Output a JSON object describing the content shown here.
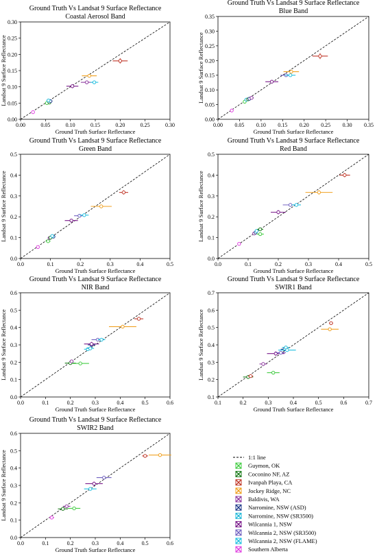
{
  "chart_data": [
    {
      "type": "scatter",
      "title": "Ground Truth Vs Landsat 9 Surface Reflectance",
      "subtitle": "Coastal Aerosol Band",
      "xlabel": "Ground Truth Surface Reflectance",
      "ylabel": "Landsat 9 Surface Reflectance",
      "xlim": [
        0,
        0.3
      ],
      "ylim": [
        0,
        0.3
      ],
      "xticks": [
        "0.00",
        "0.05",
        "0.10",
        "0.15",
        "0.20",
        "0.25",
        "0.30"
      ],
      "yticks": [
        "0.00",
        "0.05",
        "0.10",
        "0.15",
        "0.20",
        "0.25",
        "0.30"
      ],
      "tick_values": [
        0,
        0.05,
        0.1,
        0.15,
        0.2,
        0.25,
        0.3
      ],
      "points": [
        {
          "site": "Southern Alberta",
          "x": 0.025,
          "y": 0.022,
          "xerr": 0.003,
          "yerr": 0.002
        },
        {
          "site": "Guymon, OK",
          "x": 0.053,
          "y": 0.05,
          "xerr": 0.004,
          "yerr": 0.003
        },
        {
          "site": "Coconino NF, AZ",
          "x": 0.058,
          "y": 0.052,
          "xerr": 0.004,
          "yerr": 0.003
        },
        {
          "site": "Narromine, NSW (ASD)",
          "x": 0.06,
          "y": 0.056,
          "xerr": 0.004,
          "yerr": 0.003
        },
        {
          "site": "Narromine, NSW (SR3500)",
          "x": 0.056,
          "y": 0.058,
          "xerr": 0.004,
          "yerr": 0.003
        },
        {
          "site": "Wilcannia 1, NSW",
          "x": 0.104,
          "y": 0.102,
          "xerr": 0.012,
          "yerr": 0.006
        },
        {
          "site": "Baldivis, WA",
          "x": 0.133,
          "y": 0.114,
          "xerr": 0.012,
          "yerr": 0.004
        },
        {
          "site": "Wilcannia 2, NSW (FLAME)",
          "x": 0.148,
          "y": 0.114,
          "xerr": 0.008,
          "yerr": 0.004
        },
        {
          "site": "Jockey Ridge, NC",
          "x": 0.138,
          "y": 0.134,
          "xerr": 0.015,
          "yerr": 0.005
        },
        {
          "site": "Ivanpah Playa, CA",
          "x": 0.2,
          "y": 0.18,
          "xerr": 0.015,
          "yerr": 0.008
        }
      ]
    },
    {
      "type": "scatter",
      "title": "Ground Truth Vs Landsat 9 Surface Reflectance",
      "subtitle": "Blue Band",
      "xlabel": "Ground Truth Surface Reflectance",
      "ylabel": "Landsat 9 Surface Reflectance",
      "xlim": [
        0,
        0.35
      ],
      "ylim": [
        0,
        0.35
      ],
      "xticks": [
        "0.00",
        "0.05",
        "0.10",
        "0.15",
        "0.20",
        "0.25",
        "0.30",
        "0.35"
      ],
      "yticks": [
        "0.00",
        "0.05",
        "0.10",
        "0.15",
        "0.20",
        "0.25",
        "0.30",
        "0.35"
      ],
      "tick_values": [
        0,
        0.05,
        0.1,
        0.15,
        0.2,
        0.25,
        0.3,
        0.35
      ],
      "points": [
        {
          "site": "Southern Alberta",
          "x": 0.032,
          "y": 0.03,
          "xerr": 0.003,
          "yerr": 0.002
        },
        {
          "site": "Guymon, OK",
          "x": 0.062,
          "y": 0.06,
          "xerr": 0.004,
          "yerr": 0.003
        },
        {
          "site": "Narromine, NSW (SR3500)",
          "x": 0.066,
          "y": 0.067,
          "xerr": 0.004,
          "yerr": 0.003
        },
        {
          "site": "Coconino NF, AZ",
          "x": 0.07,
          "y": 0.068,
          "xerr": 0.004,
          "yerr": 0.003
        },
        {
          "site": "Narromine, NSW (ASD)",
          "x": 0.073,
          "y": 0.07,
          "xerr": 0.004,
          "yerr": 0.003
        },
        {
          "site": "Baldivis, WA",
          "x": 0.078,
          "y": 0.073,
          "xerr": 0.005,
          "yerr": 0.003
        },
        {
          "site": "Wilcannia 1, NSW",
          "x": 0.125,
          "y": 0.128,
          "xerr": 0.015,
          "yerr": 0.006
        },
        {
          "site": "Wilcannia 2, NSW (SR3500)",
          "x": 0.158,
          "y": 0.15,
          "xerr": 0.013,
          "yerr": 0.005
        },
        {
          "site": "Wilcannia 2, NSW (FLAME)",
          "x": 0.168,
          "y": 0.15,
          "xerr": 0.012,
          "yerr": 0.005
        },
        {
          "site": "Jockey Ridge, NC",
          "x": 0.17,
          "y": 0.162,
          "xerr": 0.018,
          "yerr": 0.006
        },
        {
          "site": "Ivanpah Playa, CA",
          "x": 0.237,
          "y": 0.215,
          "xerr": 0.018,
          "yerr": 0.01
        }
      ]
    },
    {
      "type": "scatter",
      "title": "Ground Truth Vs Landsat 9 Surface Reflectance",
      "subtitle": "Green Band",
      "xlabel": "Ground Truth Surface Reflectance",
      "ylabel": "Landsat 9 Surface Reflectance",
      "xlim": [
        0,
        0.5
      ],
      "ylim": [
        0,
        0.5
      ],
      "xticks": [
        "0.0",
        "0.1",
        "0.2",
        "0.3",
        "0.4",
        "0.5"
      ],
      "yticks": [
        "0.0",
        "0.1",
        "0.2",
        "0.3",
        "0.4",
        "0.5"
      ],
      "tick_values": [
        0,
        0.1,
        0.2,
        0.3,
        0.4,
        0.5
      ],
      "points": [
        {
          "site": "Southern Alberta",
          "x": 0.058,
          "y": 0.055,
          "xerr": 0.004,
          "yerr": 0.003
        },
        {
          "site": "Guymon, OK",
          "x": 0.092,
          "y": 0.083,
          "xerr": 0.008,
          "yerr": 0.004
        },
        {
          "site": "Baldivis, WA",
          "x": 0.097,
          "y": 0.098,
          "xerr": 0.006,
          "yerr": 0.004
        },
        {
          "site": "Coconino NF, AZ",
          "x": 0.1,
          "y": 0.1,
          "xerr": 0.006,
          "yerr": 0.004
        },
        {
          "site": "Narromine, NSW (ASD)",
          "x": 0.11,
          "y": 0.105,
          "xerr": 0.006,
          "yerr": 0.004
        },
        {
          "site": "Narromine, NSW (SR3500)",
          "x": 0.106,
          "y": 0.108,
          "xerr": 0.006,
          "yerr": 0.004
        },
        {
          "site": "Wilcannia 1, NSW",
          "x": 0.17,
          "y": 0.182,
          "xerr": 0.022,
          "yerr": 0.008
        },
        {
          "site": "Wilcannia 2, NSW (SR3500)",
          "x": 0.197,
          "y": 0.205,
          "xerr": 0.018,
          "yerr": 0.006
        },
        {
          "site": "Wilcannia 2, NSW (FLAME)",
          "x": 0.213,
          "y": 0.208,
          "xerr": 0.015,
          "yerr": 0.006
        },
        {
          "site": "Jockey Ridge, NC",
          "x": 0.27,
          "y": 0.25,
          "xerr": 0.035,
          "yerr": 0.008
        },
        {
          "site": "Ivanpah Playa, CA",
          "x": 0.345,
          "y": 0.317,
          "xerr": 0.015,
          "yerr": 0.01
        }
      ]
    },
    {
      "type": "scatter",
      "title": "Ground Truth Vs Landsat 9 Surface Reflectance",
      "subtitle": "Red Band",
      "xlabel": "Ground Truth Surface Reflectance",
      "ylabel": "Landsat 9 Surface Reflectance",
      "xlim": [
        0,
        0.5
      ],
      "ylim": [
        0,
        0.5
      ],
      "xticks": [
        "0.0",
        "0.1",
        "0.2",
        "0.3",
        "0.4",
        "0.5"
      ],
      "yticks": [
        "0.0",
        "0.1",
        "0.2",
        "0.3",
        "0.4",
        "0.5"
      ],
      "tick_values": [
        0,
        0.1,
        0.2,
        0.3,
        0.4,
        0.5
      ],
      "points": [
        {
          "site": "Southern Alberta",
          "x": 0.07,
          "y": 0.07,
          "xerr": 0.004,
          "yerr": 0.003
        },
        {
          "site": "Baldivis, WA",
          "x": 0.12,
          "y": 0.12,
          "xerr": 0.006,
          "yerr": 0.004
        },
        {
          "site": "Narromine, NSW (ASD)",
          "x": 0.125,
          "y": 0.125,
          "xerr": 0.006,
          "yerr": 0.004
        },
        {
          "site": "Narromine, NSW (SR3500)",
          "x": 0.128,
          "y": 0.132,
          "xerr": 0.006,
          "yerr": 0.004
        },
        {
          "site": "Guymon, OK",
          "x": 0.14,
          "y": 0.117,
          "xerr": 0.012,
          "yerr": 0.004
        },
        {
          "site": "Coconino NF, AZ",
          "x": 0.14,
          "y": 0.14,
          "xerr": 0.01,
          "yerr": 0.005
        },
        {
          "site": "Wilcannia 1, NSW",
          "x": 0.2,
          "y": 0.222,
          "xerr": 0.025,
          "yerr": 0.01
        },
        {
          "site": "Wilcannia 2, NSW (SR3500)",
          "x": 0.24,
          "y": 0.257,
          "xerr": 0.025,
          "yerr": 0.006
        },
        {
          "site": "Wilcannia 2, NSW (FLAME)",
          "x": 0.26,
          "y": 0.257,
          "xerr": 0.015,
          "yerr": 0.006
        },
        {
          "site": "Jockey Ridge, NC",
          "x": 0.335,
          "y": 0.317,
          "xerr": 0.045,
          "yerr": 0.01
        },
        {
          "site": "Ivanpah Playa, CA",
          "x": 0.42,
          "y": 0.4,
          "xerr": 0.018,
          "yerr": 0.01
        }
      ]
    },
    {
      "type": "scatter",
      "title": "Ground Truth Vs Landsat 9 Surface Reflectance",
      "subtitle": "NIR Band",
      "xlabel": "Ground Truth Surface Reflectance",
      "ylabel": "Landsat 9 Surface Reflectance",
      "xlim": [
        0,
        0.6
      ],
      "ylim": [
        0,
        0.6
      ],
      "xticks": [
        "0.0",
        "0.1",
        "0.2",
        "0.3",
        "0.4",
        "0.5",
        "0.6"
      ],
      "yticks": [
        "0.0",
        "0.1",
        "0.2",
        "0.3",
        "0.4",
        "0.5",
        "0.6"
      ],
      "tick_values": [
        0,
        0.1,
        0.2,
        0.3,
        0.4,
        0.5,
        0.6
      ],
      "points": [
        {
          "site": "Coconino NF, AZ",
          "x": 0.2,
          "y": 0.195,
          "xerr": 0.022,
          "yerr": 0.008
        },
        {
          "site": "Baldivis, WA",
          "x": 0.205,
          "y": 0.205,
          "xerr": 0.008,
          "yerr": 0.006
        },
        {
          "site": "Guymon, OK",
          "x": 0.24,
          "y": 0.193,
          "xerr": 0.035,
          "yerr": 0.006
        },
        {
          "site": "Wilcannia 2, NSW (FLAME)",
          "x": 0.27,
          "y": 0.275,
          "xerr": 0.015,
          "yerr": 0.008
        },
        {
          "site": "Narromine, NSW (SR3500)",
          "x": 0.28,
          "y": 0.28,
          "xerr": 0.015,
          "yerr": 0.008
        },
        {
          "site": "Narromine, NSW (ASD)",
          "x": 0.285,
          "y": 0.3,
          "xerr": 0.015,
          "yerr": 0.008
        },
        {
          "site": "Wilcannia 1, NSW",
          "x": 0.285,
          "y": 0.305,
          "xerr": 0.03,
          "yerr": 0.012
        },
        {
          "site": "Wilcannia 2, NSW (SR3500)",
          "x": 0.31,
          "y": 0.33,
          "xerr": 0.025,
          "yerr": 0.008
        },
        {
          "site": "Wilcannia 2, NSW (FLAME)",
          "x": 0.325,
          "y": 0.33,
          "xerr": 0.015,
          "yerr": 0.006
        },
        {
          "site": "Jockey Ridge, NC",
          "x": 0.41,
          "y": 0.405,
          "xerr": 0.055,
          "yerr": 0.01
        },
        {
          "site": "Ivanpah Playa, CA",
          "x": 0.475,
          "y": 0.45,
          "xerr": 0.018,
          "yerr": 0.01
        }
      ]
    },
    {
      "type": "scatter",
      "title": "Ground Truth Vs Landsat 9 Surface Reflectance",
      "subtitle": "SWIR1 Band",
      "xlabel": "Ground Truth Surface Reflectance",
      "ylabel": "Landsat 9 Surface Reflectance",
      "xlim": [
        0.1,
        0.7
      ],
      "ylim": [
        0.1,
        0.7
      ],
      "xticks": [
        "0.1",
        "0.2",
        "0.3",
        "0.4",
        "0.5",
        "0.6",
        "0.7"
      ],
      "yticks": [
        "0.1",
        "0.2",
        "0.3",
        "0.4",
        "0.5",
        "0.6",
        "0.7"
      ],
      "tick_values": [
        0.1,
        0.2,
        0.3,
        0.4,
        0.5,
        0.6,
        0.7
      ],
      "points": [
        {
          "site": "Coconino NF, AZ",
          "x": 0.22,
          "y": 0.215,
          "xerr": 0.02,
          "yerr": 0.006
        },
        {
          "site": "Ivanpah Playa, CA",
          "x": 0.23,
          "y": 0.22,
          "xerr": 0.01,
          "yerr": 0.006
        },
        {
          "site": "Guymon, OK",
          "x": 0.32,
          "y": 0.24,
          "xerr": 0.025,
          "yerr": 0.006
        },
        {
          "site": "Baldivis, WA",
          "x": 0.28,
          "y": 0.29,
          "xerr": 0.015,
          "yerr": 0.008
        },
        {
          "site": "Wilcannia 1, NSW",
          "x": 0.33,
          "y": 0.35,
          "xerr": 0.035,
          "yerr": 0.012
        },
        {
          "site": "Wilcannia 2, NSW (SR3500)",
          "x": 0.35,
          "y": 0.355,
          "xerr": 0.02,
          "yerr": 0.008
        },
        {
          "site": "Narromine, NSW (ASD)",
          "x": 0.365,
          "y": 0.375,
          "xerr": 0.015,
          "yerr": 0.008
        },
        {
          "site": "Wilcannia 2, NSW (FLAME)",
          "x": 0.375,
          "y": 0.37,
          "xerr": 0.035,
          "yerr": 0.008
        },
        {
          "site": "Narromine, NSW (SR3500)",
          "x": 0.37,
          "y": 0.385,
          "xerr": 0.015,
          "yerr": 0.008
        },
        {
          "site": "Jockey Ridge, NC",
          "x": 0.545,
          "y": 0.49,
          "xerr": 0.035,
          "yerr": 0.01
        },
        {
          "site": "Ivanpah Playa, CA",
          "x": 0.55,
          "y": 0.525,
          "xerr": 0.008,
          "yerr": 0.008
        }
      ]
    },
    {
      "type": "scatter",
      "title": "Ground Truth Vs Landsat 9 Surface Reflectance",
      "subtitle": "SWIR2 Band",
      "xlabel": "Ground Truth Surface Reflectance",
      "ylabel": "Landsat 9 Surface Reflectance",
      "xlim": [
        0,
        0.6
      ],
      "ylim": [
        0,
        0.6
      ],
      "xticks": [
        "0.0",
        "0.1",
        "0.2",
        "0.3",
        "0.4",
        "0.5",
        "0.6"
      ],
      "yticks": [
        "0.0",
        "0.1",
        "0.2",
        "0.3",
        "0.4",
        "0.5",
        "0.6"
      ],
      "tick_values": [
        0,
        0.1,
        0.2,
        0.3,
        0.4,
        0.5,
        0.6
      ],
      "points": [
        {
          "site": "Southern Alberta",
          "x": 0.125,
          "y": 0.115,
          "xerr": 0.01,
          "yerr": 0.005
        },
        {
          "site": "Coconino NF, AZ",
          "x": 0.17,
          "y": 0.165,
          "xerr": 0.02,
          "yerr": 0.006
        },
        {
          "site": "Baldivis, WA",
          "x": 0.185,
          "y": 0.18,
          "xerr": 0.015,
          "yerr": 0.006
        },
        {
          "site": "Guymon, OK",
          "x": 0.215,
          "y": 0.168,
          "xerr": 0.025,
          "yerr": 0.006
        },
        {
          "site": "Wilcannia 2, NSW (FLAME)",
          "x": 0.28,
          "y": 0.28,
          "xerr": 0.025,
          "yerr": 0.008
        },
        {
          "site": "Wilcannia 1, NSW",
          "x": 0.295,
          "y": 0.31,
          "xerr": 0.035,
          "yerr": 0.012
        },
        {
          "site": "Wilcannia 2, NSW (SR3500)",
          "x": 0.335,
          "y": 0.345,
          "xerr": 0.03,
          "yerr": 0.008
        },
        {
          "site": "Ivanpah Playa, CA",
          "x": 0.5,
          "y": 0.47,
          "xerr": 0.012,
          "yerr": 0.008
        },
        {
          "site": "Jockey Ridge, NC",
          "x": 0.56,
          "y": 0.475,
          "xerr": 0.045,
          "yerr": 0.01
        }
      ]
    }
  ],
  "legend": {
    "line_label": "1:1 line",
    "items": [
      {
        "label": "Guymon, OK",
        "color": "#44cc44"
      },
      {
        "label": "Coconino NF, AZ",
        "color": "#1a7a1a"
      },
      {
        "label": "Ivanpah Playa, CA",
        "color": "#c0392b"
      },
      {
        "label": "Jockey Ridge, NC",
        "color": "#f0a020"
      },
      {
        "label": "Baldivis, WA",
        "color": "#8e3aa0"
      },
      {
        "label": "Narromine, NSW (ASD)",
        "color": "#1f3a8a"
      },
      {
        "label": "Narromine, NSW (SR3500)",
        "color": "#20b8d8"
      },
      {
        "label": "Wilcannia 1, NSW",
        "color": "#7a1a8a"
      },
      {
        "label": "Wilcannia 2, NSW (SR3500)",
        "color": "#7060c0"
      },
      {
        "label": "Wilcannia 2, NSW (FLAME)",
        "color": "#20c0e0"
      },
      {
        "label": "Southern Alberta",
        "color": "#e040e0"
      }
    ]
  }
}
